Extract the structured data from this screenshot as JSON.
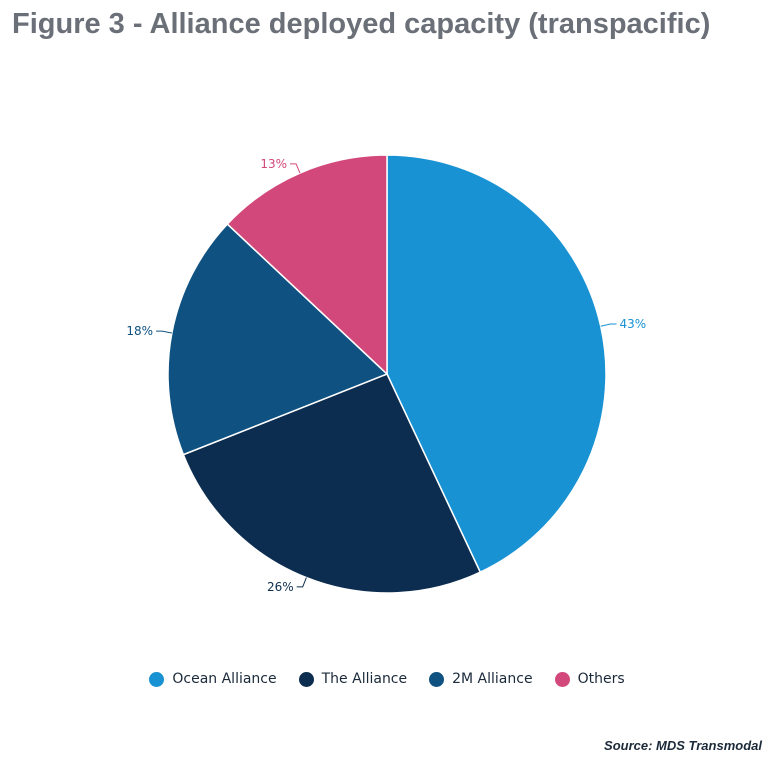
{
  "title": "Figure 3 - Alliance deployed capacity (transpacific)",
  "source": "Source: MDS Transmodal",
  "chart_data": {
    "type": "pie",
    "title": "Figure 3 - Alliance deployed capacity (transpacific)",
    "legend_position": "bottom",
    "slices": [
      {
        "name": "Ocean Alliance",
        "value": 43,
        "label": "43%",
        "color": "#1892d3"
      },
      {
        "name": "The Alliance",
        "value": 26,
        "label": "26%",
        "color": "#0c2d4f"
      },
      {
        "name": "2M Alliance",
        "value": 18,
        "label": "18%",
        "color": "#0f5282"
      },
      {
        "name": "Others",
        "value": 13,
        "label": "13%",
        "color": "#d2487a"
      }
    ]
  }
}
